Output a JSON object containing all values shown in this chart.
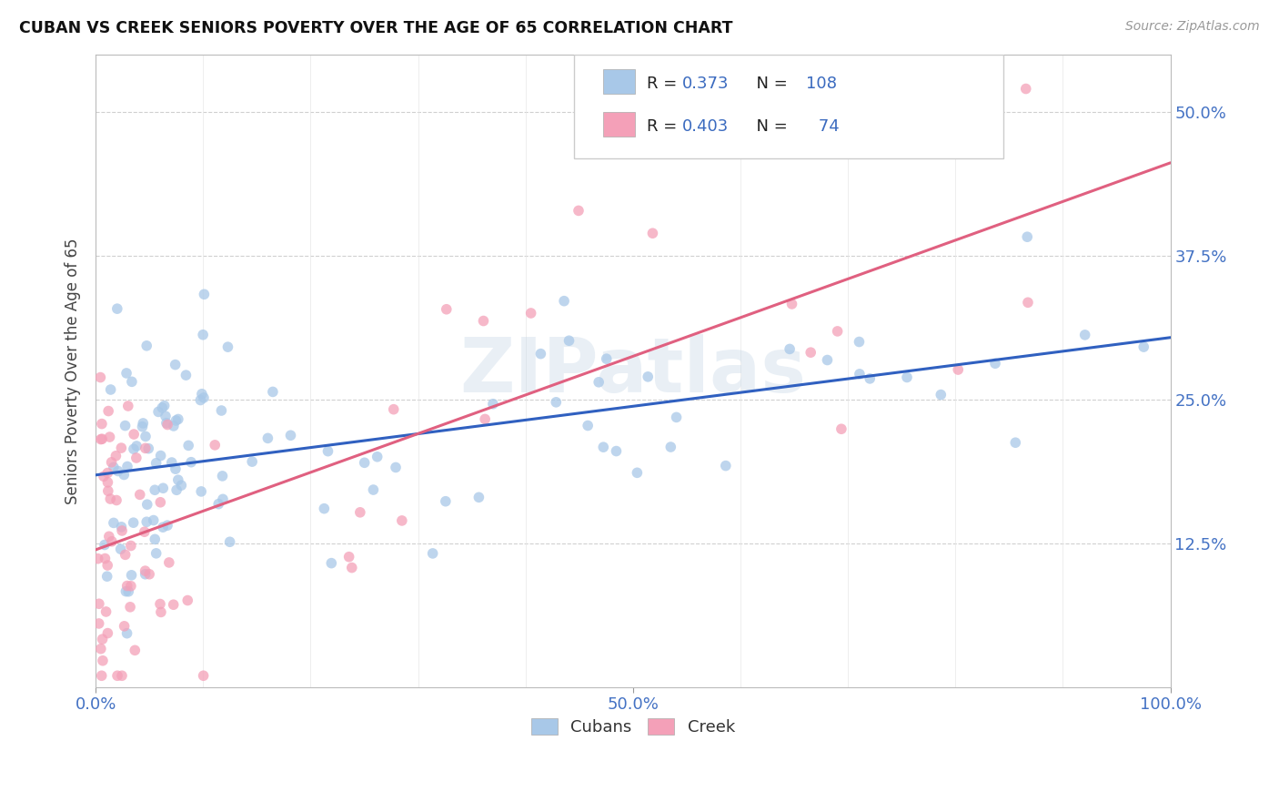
{
  "title": "CUBAN VS CREEK SENIORS POVERTY OVER THE AGE OF 65 CORRELATION CHART",
  "source": "Source: ZipAtlas.com",
  "ylabel": "Seniors Poverty Over the Age of 65",
  "xlim": [
    0,
    1.0
  ],
  "ylim": [
    0,
    0.55
  ],
  "cubans_R": "0.373",
  "cubans_N": "108",
  "creek_R": "0.403",
  "creek_N": " 74",
  "cuban_color": "#a8c8e8",
  "creek_color": "#f4a0b8",
  "cuban_line_color": "#3060c0",
  "creek_line_color": "#e06080",
  "watermark": "ZIPatlas",
  "ytick_values": [
    0.125,
    0.25,
    0.375,
    0.5
  ],
  "ytick_labels": [
    "12.5%",
    "25.0%",
    "37.5%",
    "50.0%"
  ],
  "xtick_values": [
    0.0,
    0.5,
    1.0
  ],
  "xtick_labels": [
    "0.0%",
    "50.0%",
    "100.0%"
  ],
  "legend_black_color": "#222222",
  "legend_blue_color": "#3a6abf",
  "axis_color": "#4472c4",
  "grid_color": "#d0d0d0",
  "seed_cubans": 42,
  "seed_creek": 99
}
